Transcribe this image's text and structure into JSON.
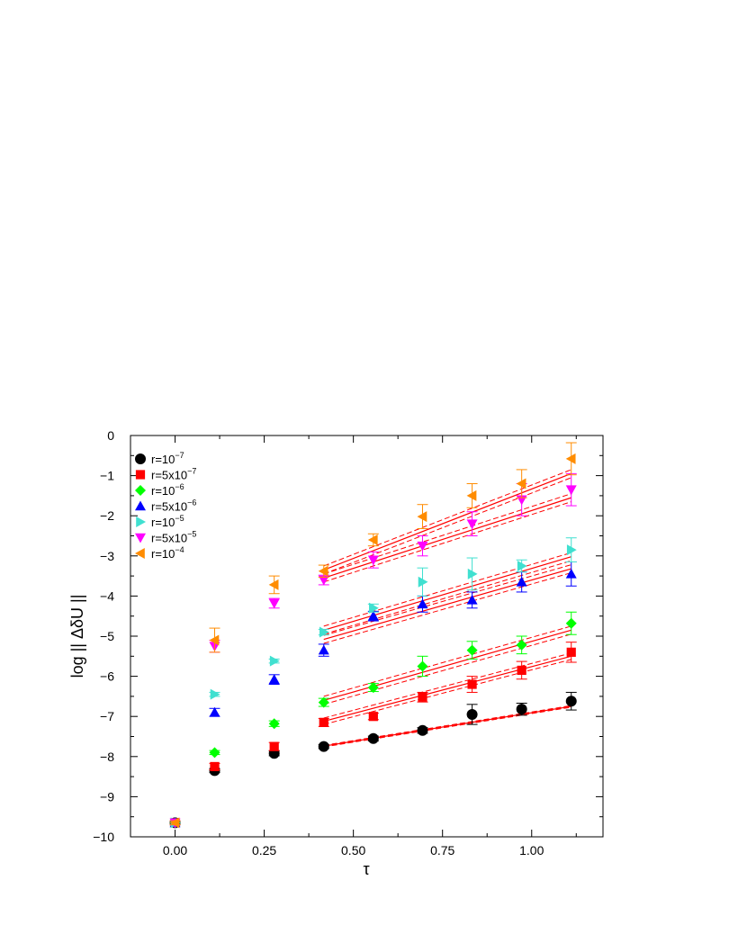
{
  "chart_data": {
    "type": "scatter",
    "xlabel": "τ",
    "ylabel": "log || ΔδU ||",
    "xlim": [
      -0.125,
      1.2
    ],
    "ylim": [
      -10,
      0
    ],
    "xticks": [
      0.0,
      0.25,
      0.5,
      0.75,
      1.0
    ],
    "xtick_labels": [
      "0.00",
      "0.25",
      "0.50",
      "0.75",
      "1.00"
    ],
    "yticks": [
      0,
      -1,
      -2,
      -3,
      -4,
      -5,
      -6,
      -7,
      -8,
      -9,
      -10
    ],
    "ytick_labels": [
      "0",
      "−1",
      "−2",
      "−3",
      "−4",
      "−5",
      "−6",
      "−7",
      "−8",
      "−9",
      "−10"
    ],
    "grid": false,
    "legend_position": "top-left",
    "fit_line_color": "#ff0000",
    "series": [
      {
        "name": "r=10^−7",
        "legend_base": "r=10",
        "legend_exp": "−7",
        "color": "#000000",
        "marker": "circle",
        "x": [
          0.0,
          0.111,
          0.278,
          0.417,
          0.556,
          0.694,
          0.833,
          0.972,
          1.111
        ],
        "y": [
          -9.65,
          -8.35,
          -7.92,
          -7.75,
          -7.55,
          -7.35,
          -6.95,
          -6.82,
          -6.62
        ],
        "err": [
          0.05,
          0.05,
          0.06,
          0.05,
          0.06,
          0.07,
          0.25,
          0.15,
          0.22
        ],
        "fit": {
          "x": [
            0.417,
            1.111
          ],
          "y": [
            -7.74,
            -6.75
          ],
          "band": 0.02
        }
      },
      {
        "name": "r=5x10^−7",
        "legend_base": "r=5x10",
        "legend_exp": "−7",
        "color": "#ff0000",
        "marker": "square",
        "x": [
          0.0,
          0.111,
          0.278,
          0.417,
          0.556,
          0.694,
          0.833,
          0.972,
          1.111
        ],
        "y": [
          -9.65,
          -8.25,
          -7.75,
          -7.15,
          -7.0,
          -6.52,
          -6.2,
          -5.85,
          -5.4
        ],
        "err": [
          0.05,
          0.08,
          0.1,
          0.1,
          0.08,
          0.12,
          0.2,
          0.22,
          0.25
        ],
        "fit": {
          "x": [
            0.417,
            1.111
          ],
          "y": [
            -7.12,
            -5.5
          ],
          "band": 0.08
        }
      },
      {
        "name": "r=10^−6",
        "legend_base": "r=10",
        "legend_exp": "−6",
        "color": "#00ff00",
        "marker": "diamond",
        "x": [
          0.0,
          0.111,
          0.278,
          0.417,
          0.556,
          0.694,
          0.833,
          0.972,
          1.111
        ],
        "y": [
          -9.65,
          -7.9,
          -7.18,
          -6.65,
          -6.28,
          -5.75,
          -5.35,
          -5.22,
          -4.68
        ],
        "err": [
          0.05,
          0.05,
          0.07,
          0.1,
          0.1,
          0.25,
          0.22,
          0.22,
          0.28
        ],
        "fit": {
          "x": [
            0.417,
            1.111
          ],
          "y": [
            -6.6,
            -4.85
          ],
          "band": 0.1
        }
      },
      {
        "name": "r=5x10^−6",
        "legend_base": "r=5x10",
        "legend_exp": "−6",
        "color": "#0000ff",
        "marker": "triangle-up",
        "x": [
          0.0,
          0.111,
          0.278,
          0.417,
          0.556,
          0.694,
          0.833,
          0.972,
          1.111
        ],
        "y": [
          -9.65,
          -6.9,
          -6.08,
          -5.35,
          -4.5,
          -4.2,
          -4.1,
          -3.65,
          -3.45
        ],
        "err": [
          0.05,
          0.1,
          0.12,
          0.15,
          0.12,
          0.2,
          0.2,
          0.25,
          0.3
        ],
        "fit": {
          "x": [
            0.417,
            1.111
          ],
          "y": [
            -5.08,
            -3.32
          ],
          "band": 0.1
        }
      },
      {
        "name": "r=10^−5",
        "legend_base": "r=10",
        "legend_exp": "−5",
        "color": "#40e0d0",
        "marker": "triangle-right",
        "x": [
          0.0,
          0.111,
          0.278,
          0.417,
          0.556,
          0.694,
          0.833,
          0.972,
          1.111
        ],
        "y": [
          -9.65,
          -6.45,
          -5.62,
          -4.9,
          -4.3,
          -3.65,
          -3.45,
          -3.25,
          -2.85
        ],
        "err": [
          0.05,
          0.05,
          0.05,
          0.07,
          0.1,
          0.35,
          0.4,
          0.15,
          0.3
        ],
        "fit": {
          "x": [
            0.417,
            1.111
          ],
          "y": [
            -4.85,
            -3.02
          ],
          "band": 0.1
        }
      },
      {
        "name": "r=5x10^−5",
        "legend_base": "r=5x10",
        "legend_exp": "−5",
        "color": "#ff00ff",
        "marker": "triangle-down",
        "x": [
          0.0,
          0.111,
          0.278,
          0.417,
          0.556,
          0.694,
          0.833,
          0.972,
          1.111
        ],
        "y": [
          -9.65,
          -5.25,
          -4.18,
          -3.6,
          -3.1,
          -2.75,
          -2.2,
          -1.6,
          -1.35
        ],
        "err": [
          0.05,
          0.15,
          0.12,
          0.12,
          0.2,
          0.25,
          0.3,
          0.4,
          0.4
        ],
        "fit": {
          "x": [
            0.417,
            1.111
          ],
          "y": [
            -3.55,
            -1.55
          ],
          "band": 0.1
        }
      },
      {
        "name": "r=10^−4",
        "legend_base": "r=10",
        "legend_exp": "−4",
        "color": "#ff8c00",
        "marker": "triangle-left",
        "x": [
          0.0,
          0.111,
          0.278,
          0.417,
          0.556,
          0.694,
          0.833,
          0.972,
          1.111
        ],
        "y": [
          -9.65,
          -5.1,
          -3.72,
          -3.38,
          -2.6,
          -2.02,
          -1.5,
          -1.2,
          -0.58
        ],
        "err": [
          0.05,
          0.3,
          0.22,
          0.15,
          0.15,
          0.3,
          0.3,
          0.35,
          0.4
        ],
        "fit": {
          "x": [
            0.417,
            1.111
          ],
          "y": [
            -3.35,
            -0.95
          ],
          "band": 0.1
        }
      }
    ]
  }
}
